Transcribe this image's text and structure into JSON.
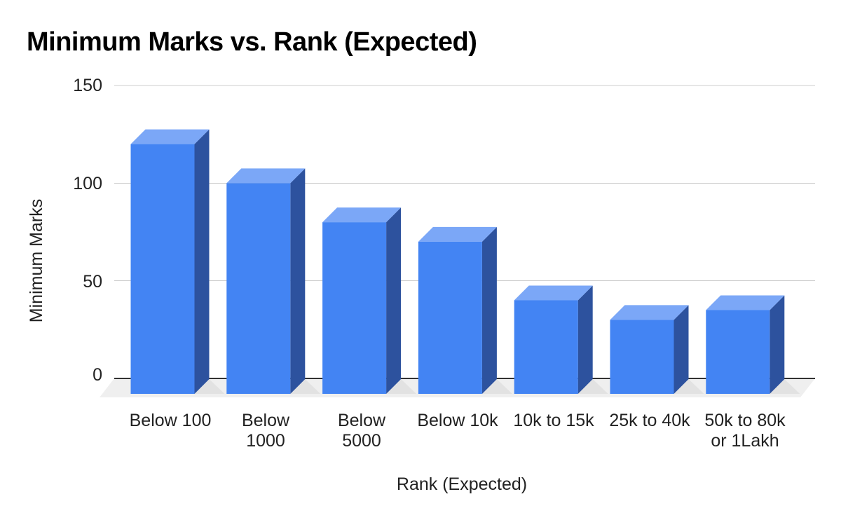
{
  "title": "Minimum Marks vs. Rank (Expected)",
  "chart_data": {
    "type": "bar",
    "style_3d": true,
    "title": "Minimum Marks vs. Rank (Expected)",
    "xlabel": "Rank (Expected)",
    "ylabel": "Minimum Marks",
    "categories": [
      "Below 100",
      "Below 1000",
      "Below 5000",
      "Below 10k",
      "10k to 15k",
      "25k to 40k",
      "50k to 80k or 1Lakh"
    ],
    "values": [
      120,
      100,
      80,
      70,
      40,
      30,
      35
    ],
    "ylim": [
      0,
      150
    ],
    "yticks": [
      0,
      50,
      100,
      150
    ],
    "grid": true,
    "legend": "none",
    "colors": {
      "bar_front": "#4384f3",
      "bar_top": "#7ba7f7",
      "bar_side": "#2d529e",
      "floor": "#efefef",
      "shadow": "#e2e2e2",
      "gridline": "#cccccc",
      "baseline": "#333333",
      "text": "#222222",
      "title_text": "#000000",
      "background": "#ffffff"
    }
  },
  "axes": {
    "y_title": "Minimum Marks",
    "x_title": "Rank (Expected)",
    "y_ticks": [
      "150",
      "100",
      "50",
      "0"
    ],
    "x_labels": [
      "Below 100",
      "Below\n1000",
      "Below\n5000",
      "Below 10k",
      "10k to 15k",
      "25k to 40k",
      "50k to 80k\nor 1Lakh"
    ]
  }
}
